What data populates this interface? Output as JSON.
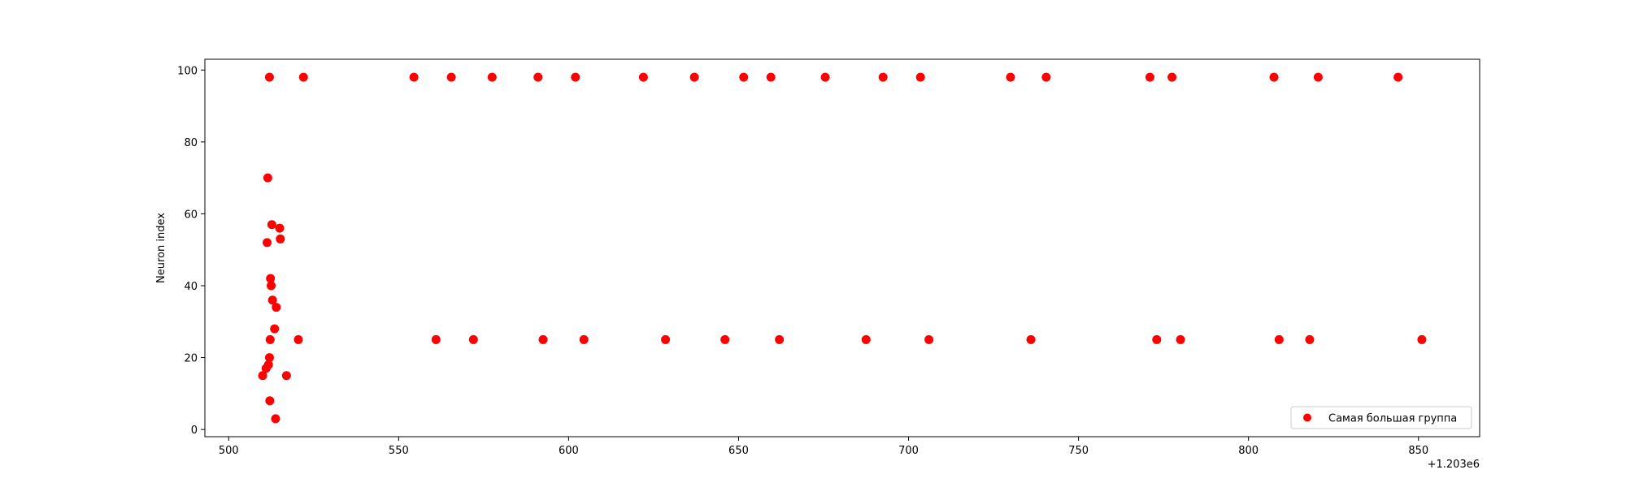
{
  "chart_data": {
    "type": "scatter",
    "title": "",
    "xlabel": "",
    "ylabel": "Neuron index",
    "x_offset_label": "+1.203e6",
    "xlim": [
      493,
      868
    ],
    "ylim": [
      -2,
      103
    ],
    "x_ticks": [
      500,
      550,
      600,
      650,
      700,
      750,
      800,
      850
    ],
    "y_ticks": [
      0,
      20,
      40,
      60,
      80,
      100
    ],
    "grid": false,
    "legend_position": "lower-right",
    "marker_color": "#ff0000",
    "series": [
      {
        "name": "Самая большая группа",
        "x": [
          510,
          511,
          511.3,
          511.5,
          511.7,
          512,
          512.1,
          512.2,
          512.3,
          512.5,
          512.7,
          512.9,
          513.5,
          513.8,
          514,
          515,
          515.2,
          517,
          520.5,
          512,
          522,
          554.5,
          565.5,
          577.5,
          591,
          602,
          622,
          637,
          651.5,
          659.5,
          675.5,
          692.5,
          703.5,
          730,
          740.5,
          771,
          777.5,
          807.5,
          820.5,
          844,
          561,
          572,
          592.5,
          604.5,
          628.5,
          646,
          662,
          687.5,
          706,
          736,
          773,
          780,
          809,
          818,
          851
        ],
        "y": [
          15,
          17,
          52,
          70,
          18,
          20,
          8,
          25,
          42,
          40,
          57,
          36,
          28,
          3,
          34,
          56,
          53,
          15,
          25,
          98,
          98,
          98,
          98,
          98,
          98,
          98,
          98,
          98,
          98,
          98,
          98,
          98,
          98,
          98,
          98,
          98,
          98,
          98,
          98,
          98,
          25,
          25,
          25,
          25,
          25,
          25,
          25,
          25,
          25,
          25,
          25,
          25,
          25,
          25,
          25
        ]
      }
    ]
  }
}
